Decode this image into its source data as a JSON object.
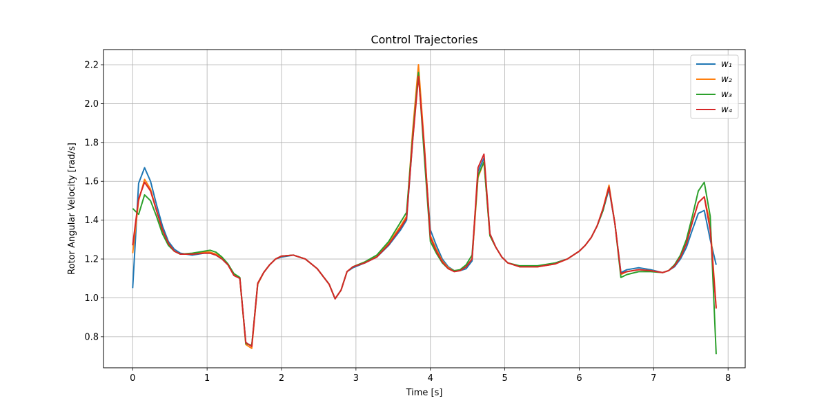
{
  "chart_data": {
    "type": "line",
    "title": "Control Trajectories",
    "xlabel": "Time [s]",
    "ylabel": "Rotor Angular Velocity [rad/s]",
    "x": [
      0,
      0.08,
      0.16,
      0.24,
      0.32,
      0.4,
      0.48,
      0.56,
      0.64,
      0.8,
      0.96,
      1.04,
      1.12,
      1.2,
      1.28,
      1.36,
      1.44,
      1.52,
      1.6,
      1.68,
      1.76,
      1.84,
      1.92,
      2.0,
      2.16,
      2.32,
      2.48,
      2.64,
      2.72,
      2.8,
      2.88,
      2.96,
      3.12,
      3.28,
      3.44,
      3.6,
      3.68,
      3.76,
      3.84,
      3.92,
      4.0,
      4.08,
      4.16,
      4.24,
      4.32,
      4.4,
      4.48,
      4.56,
      4.64,
      4.72,
      4.8,
      4.88,
      4.96,
      5.04,
      5.2,
      5.44,
      5.68,
      5.84,
      6.0,
      6.08,
      6.16,
      6.24,
      6.32,
      6.4,
      6.48,
      6.56,
      6.64,
      6.8,
      6.96,
      7.12,
      7.2,
      7.28,
      7.36,
      7.44,
      7.52,
      7.6,
      7.68,
      7.76,
      7.84
    ],
    "series": [
      {
        "name": "w₁",
        "color": "#1f77b4",
        "values": [
          1.05,
          1.59,
          1.67,
          1.6,
          1.48,
          1.37,
          1.29,
          1.25,
          1.23,
          1.22,
          1.23,
          1.23,
          1.22,
          1.2,
          1.17,
          1.12,
          1.1,
          0.77,
          0.75,
          1.07,
          1.13,
          1.17,
          1.2,
          1.21,
          1.22,
          1.2,
          1.15,
          1.07,
          0.995,
          1.04,
          1.135,
          1.155,
          1.18,
          1.21,
          1.27,
          1.35,
          1.4,
          1.8,
          2.17,
          1.75,
          1.35,
          1.27,
          1.2,
          1.16,
          1.14,
          1.14,
          1.15,
          1.19,
          1.65,
          1.72,
          1.33,
          1.26,
          1.21,
          1.18,
          1.16,
          1.16,
          1.18,
          1.2,
          1.24,
          1.27,
          1.31,
          1.37,
          1.45,
          1.56,
          1.38,
          1.13,
          1.145,
          1.155,
          1.145,
          1.13,
          1.14,
          1.16,
          1.2,
          1.26,
          1.35,
          1.435,
          1.45,
          1.3,
          1.17
        ]
      },
      {
        "name": "w₂",
        "color": "#ff7f0e",
        "values": [
          1.23,
          1.5,
          1.61,
          1.56,
          1.45,
          1.35,
          1.28,
          1.24,
          1.225,
          1.225,
          1.235,
          1.235,
          1.225,
          1.205,
          1.17,
          1.12,
          1.1,
          0.76,
          0.74,
          1.07,
          1.13,
          1.17,
          1.2,
          1.215,
          1.22,
          1.2,
          1.15,
          1.07,
          0.995,
          1.04,
          1.135,
          1.16,
          1.185,
          1.215,
          1.28,
          1.37,
          1.42,
          1.85,
          2.2,
          1.78,
          1.32,
          1.25,
          1.19,
          1.155,
          1.14,
          1.14,
          1.16,
          1.2,
          1.62,
          1.7,
          1.32,
          1.26,
          1.21,
          1.18,
          1.16,
          1.16,
          1.175,
          1.2,
          1.24,
          1.27,
          1.31,
          1.37,
          1.46,
          1.58,
          1.38,
          1.12,
          1.135,
          1.145,
          1.14,
          1.13,
          1.14,
          1.165,
          1.21,
          1.28,
          1.39,
          1.49,
          1.52,
          1.38,
          0.95
        ]
      },
      {
        "name": "w₃",
        "color": "#2ca02c",
        "values": [
          1.46,
          1.43,
          1.53,
          1.5,
          1.42,
          1.33,
          1.27,
          1.24,
          1.225,
          1.23,
          1.24,
          1.245,
          1.235,
          1.21,
          1.175,
          1.125,
          1.105,
          0.765,
          0.755,
          1.075,
          1.13,
          1.17,
          1.2,
          1.215,
          1.22,
          1.2,
          1.15,
          1.07,
          0.995,
          1.04,
          1.135,
          1.16,
          1.185,
          1.22,
          1.29,
          1.39,
          1.44,
          1.82,
          2.16,
          1.72,
          1.29,
          1.23,
          1.18,
          1.15,
          1.14,
          1.145,
          1.17,
          1.22,
          1.63,
          1.7,
          1.32,
          1.26,
          1.21,
          1.18,
          1.165,
          1.165,
          1.18,
          1.2,
          1.24,
          1.27,
          1.31,
          1.37,
          1.45,
          1.57,
          1.38,
          1.105,
          1.12,
          1.135,
          1.135,
          1.13,
          1.14,
          1.17,
          1.22,
          1.3,
          1.42,
          1.55,
          1.595,
          1.42,
          0.71
        ]
      },
      {
        "name": "w₄",
        "color": "#d62728",
        "values": [
          1.27,
          1.51,
          1.595,
          1.55,
          1.45,
          1.35,
          1.28,
          1.24,
          1.225,
          1.225,
          1.23,
          1.23,
          1.22,
          1.2,
          1.17,
          1.115,
          1.1,
          0.77,
          0.75,
          1.075,
          1.13,
          1.17,
          1.2,
          1.215,
          1.22,
          1.2,
          1.15,
          1.07,
          0.995,
          1.04,
          1.135,
          1.16,
          1.18,
          1.21,
          1.275,
          1.36,
          1.41,
          1.8,
          2.14,
          1.77,
          1.31,
          1.24,
          1.185,
          1.15,
          1.135,
          1.14,
          1.16,
          1.2,
          1.67,
          1.74,
          1.33,
          1.26,
          1.21,
          1.18,
          1.16,
          1.16,
          1.175,
          1.2,
          1.24,
          1.27,
          1.31,
          1.37,
          1.46,
          1.57,
          1.38,
          1.125,
          1.135,
          1.145,
          1.14,
          1.13,
          1.14,
          1.165,
          1.21,
          1.28,
          1.39,
          1.49,
          1.52,
          1.35,
          0.945
        ]
      }
    ],
    "xlim": [
      -0.392,
      8.23
    ],
    "xticks": [
      0,
      1,
      2,
      3,
      4,
      5,
      6,
      7,
      8
    ],
    "ylim": [
      0.64,
      2.278
    ],
    "yticks": [
      0.8,
      {
        "value": 1,
        "label": "1.0"
      },
      1.2,
      1.4,
      1.6,
      1.8,
      {
        "value": 2,
        "label": "2.0"
      },
      2.2
    ],
    "grid": true,
    "legend": "upper right"
  }
}
